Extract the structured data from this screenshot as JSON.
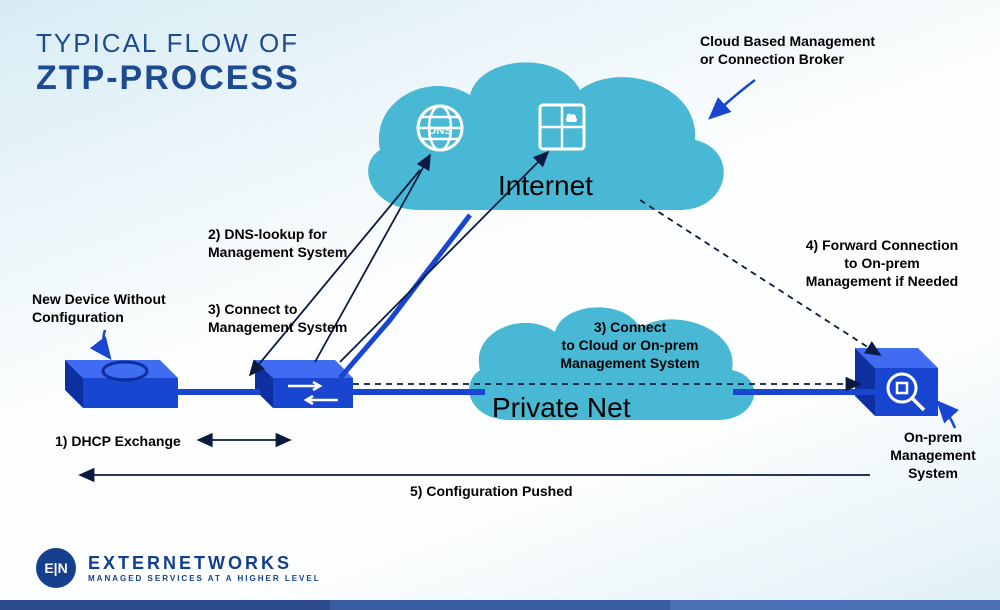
{
  "title": {
    "line1": "TYPICAL FLOW OF",
    "line2": "ZTP-PROCESS"
  },
  "labels": {
    "newDevice": "New Device Without\nConfiguration",
    "dhcp": "1) DHCP Exchange",
    "dnsLookup": "2) DNS-lookup for\nManagement System",
    "connectMgmt": "3) Connect to\nManagement System",
    "connectCloud": "3) Connect\nto Cloud or On-prem\nManagement System",
    "cloudBased": "Cloud Based Management\nor Connection Broker",
    "forward": "4) Forward Connection\nto On-prem\nManagement if Needed",
    "onPrem": "On-prem\nManagement\nSystem",
    "configPushed": "5) Configuration Pushed",
    "internet": "Internet",
    "privateNet": "Private Net"
  },
  "colors": {
    "cloud": "#49b8d4",
    "device": "#1846d0",
    "deviceTop": "#3f6cf0",
    "arrow": "#0a1a40",
    "pointer": "#1846d0",
    "lineBlue": "#1846d0"
  },
  "footer": {
    "brand": "EXTERNETWORKS",
    "tagline": "MANAGED SERVICES AT A HIGHER LEVEL",
    "logoText": "E|N"
  }
}
